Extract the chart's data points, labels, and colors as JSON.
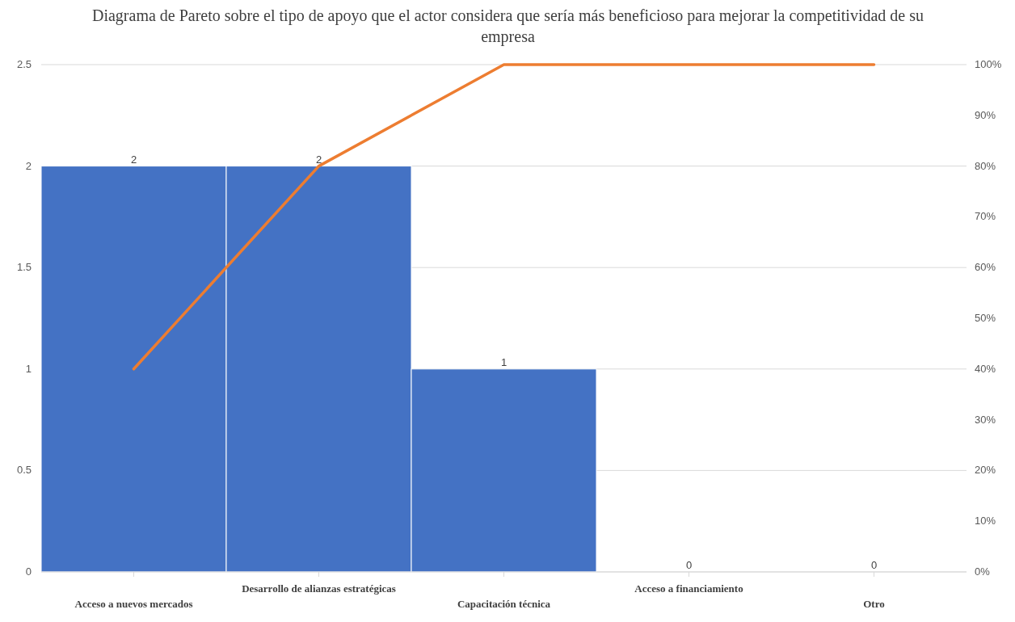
{
  "chart_data": {
    "type": "bar",
    "title": "Diagrama de Pareto sobre el tipo de apoyo que el actor considera que sería más beneficioso para mejorar la competitividad de su empresa",
    "categories": [
      "Acceso a nuevos mercados",
      "Desarrollo de alianzas estratégicas",
      "Capacitación técnica",
      "Acceso a financiamiento",
      "Otro"
    ],
    "series": [
      {
        "color": "#4472c4",
        "values": [
          2,
          2,
          1,
          0,
          0
        ],
        "value_labels": [
          "2",
          "2",
          "1",
          "0",
          "0"
        ]
      },
      {
        "type": "line",
        "color": "#ed7d31",
        "axis": "y2",
        "values": [
          40,
          80,
          100,
          100,
          100
        ]
      }
    ],
    "ylim": [
      0,
      2.5
    ],
    "yticks": [
      0,
      0.5,
      1,
      1.5,
      2,
      2.5
    ],
    "y2lim": [
      0,
      100
    ],
    "y2ticks": [
      {
        "value": 0,
        "label": "0%"
      },
      {
        "value": 10,
        "label": "10%"
      },
      {
        "value": 20,
        "label": "20%"
      },
      {
        "value": 30,
        "label": "30%"
      },
      {
        "value": 40,
        "label": "40%"
      },
      {
        "value": 50,
        "label": "50%"
      },
      {
        "value": 60,
        "label": "60%"
      },
      {
        "value": 70,
        "label": "70%"
      },
      {
        "value": 80,
        "label": "80%"
      },
      {
        "value": 90,
        "label": "90%"
      },
      {
        "value": 100,
        "label": "100%"
      }
    ],
    "grid": "y",
    "marker": "none",
    "line_style": "solid"
  }
}
